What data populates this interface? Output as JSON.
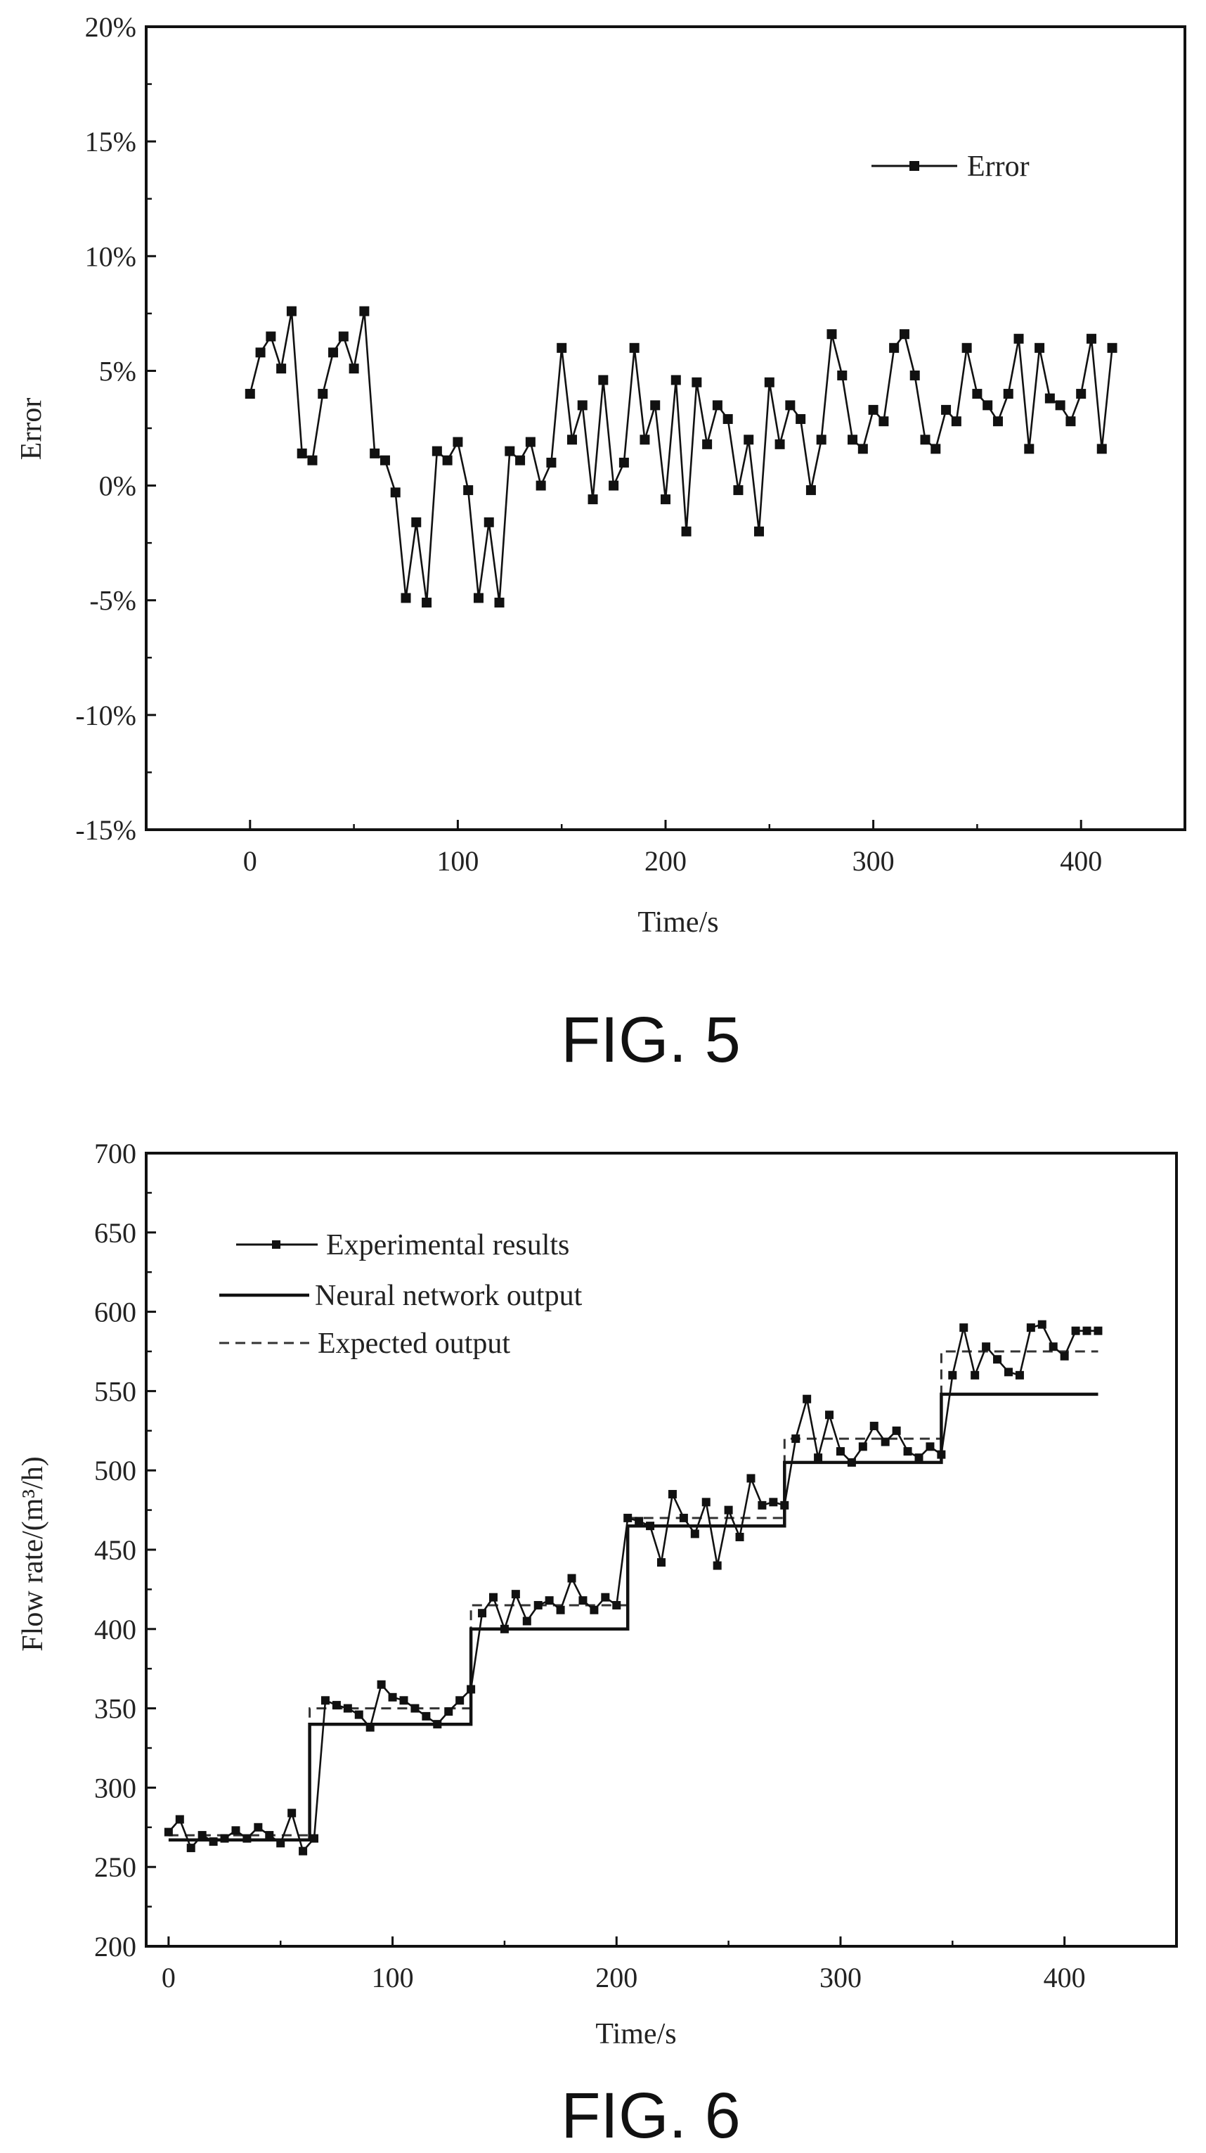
{
  "figures": [
    {
      "caption": "FIG. 5",
      "chart_data": {
        "type": "line",
        "xlabel": "Time/s",
        "ylabel": "Error",
        "xlim": [
          -50,
          450
        ],
        "ylim": [
          -15,
          20
        ],
        "x_ticks": [
          0,
          100,
          200,
          300,
          400
        ],
        "x_tick_labels": [
          "0",
          "100",
          "200",
          "300",
          "400"
        ],
        "y_ticks": [
          -15,
          -10,
          -5,
          0,
          5,
          10,
          15,
          20
        ],
        "y_tick_labels": [
          "-15%",
          "-10%",
          "-5%",
          "0%",
          "5%",
          "10%",
          "15%",
          "20%"
        ],
        "grid": false,
        "legend_position": "top-right",
        "series": [
          {
            "name": "Error",
            "marker": "square",
            "x": [
              0,
              5,
              10,
              15,
              20,
              25,
              30,
              35,
              40,
              45,
              50,
              55,
              60,
              65,
              70,
              75,
              80,
              85,
              90,
              95,
              100,
              105,
              110,
              115,
              120,
              125,
              130,
              135,
              140,
              145,
              150,
              155,
              160,
              165,
              170,
              175,
              180,
              185,
              190,
              195,
              200,
              205,
              210,
              215,
              220,
              225,
              230,
              235,
              240,
              245,
              250,
              255,
              260,
              265,
              270,
              275,
              280,
              285,
              290,
              295,
              300,
              305,
              310,
              315,
              320,
              325,
              330,
              335,
              340,
              345,
              350,
              355,
              360,
              365,
              370,
              375,
              380,
              385,
              390,
              395,
              400,
              405,
              410,
              415
            ],
            "values": [
              4.0,
              5.8,
              6.5,
              5.1,
              7.6,
              1.4,
              1.1,
              4.0,
              5.8,
              6.5,
              5.1,
              7.6,
              1.4,
              1.1,
              -0.3,
              -4.9,
              -1.6,
              -5.1,
              1.5,
              1.1,
              1.9,
              -0.2,
              -4.9,
              -1.6,
              -5.1,
              1.5,
              1.1,
              1.9,
              0.0,
              1.0,
              6.0,
              2.0,
              3.5,
              -0.6,
              4.6,
              0.0,
              1.0,
              6.0,
              2.0,
              3.5,
              -0.6,
              4.6,
              -2.0,
              4.5,
              1.8,
              3.5,
              2.9,
              -0.2,
              2.0,
              -2.0,
              4.5,
              1.8,
              3.5,
              2.9,
              -0.2,
              2.0,
              6.6,
              4.8,
              2.0,
              1.6,
              3.3,
              2.8,
              6.0,
              6.6,
              4.8,
              2.0,
              1.6,
              3.3,
              2.8,
              6.0,
              4.0,
              3.5,
              2.8,
              4.0,
              6.4,
              1.6,
              6.0,
              3.8,
              3.5,
              2.8,
              4.0,
              6.4,
              1.6,
              6.0
            ]
          }
        ]
      }
    },
    {
      "caption": "FIG. 6",
      "chart_data": {
        "type": "line",
        "xlabel": "Time/s",
        "ylabel": "Flow rate/(m³/h)",
        "xlim": [
          -10,
          450
        ],
        "ylim": [
          200,
          700
        ],
        "x_ticks": [
          0,
          100,
          200,
          300,
          400
        ],
        "x_tick_labels": [
          "0",
          "100",
          "200",
          "300",
          "400"
        ],
        "y_ticks": [
          200,
          250,
          300,
          350,
          400,
          450,
          500,
          550,
          600,
          650,
          700
        ],
        "y_tick_labels": [
          "200",
          "250",
          "300",
          "350",
          "400",
          "450",
          "500",
          "550",
          "600",
          "650",
          "700"
        ],
        "grid": false,
        "legend_position": "top-left",
        "series": [
          {
            "name": "Experimental results",
            "style": "line-with-markers",
            "x": [
              0,
              5,
              10,
              15,
              20,
              25,
              30,
              35,
              40,
              45,
              50,
              55,
              60,
              65,
              70,
              75,
              80,
              85,
              90,
              95,
              100,
              105,
              110,
              115,
              120,
              125,
              130,
              135,
              140,
              145,
              150,
              155,
              160,
              165,
              170,
              175,
              180,
              185,
              190,
              195,
              200,
              205,
              210,
              215,
              220,
              225,
              230,
              235,
              240,
              245,
              250,
              255,
              260,
              265,
              270,
              275,
              280,
              285,
              290,
              295,
              300,
              305,
              310,
              315,
              320,
              325,
              330,
              335,
              340,
              345,
              350,
              355,
              360,
              365,
              370,
              375,
              380,
              385,
              390,
              395,
              400,
              405,
              410,
              415
            ],
            "values": [
              272,
              280,
              262,
              270,
              266,
              268,
              273,
              268,
              275,
              270,
              265,
              284,
              260,
              268,
              355,
              352,
              350,
              346,
              338,
              365,
              357,
              355,
              350,
              345,
              340,
              348,
              355,
              362,
              410,
              420,
              400,
              422,
              405,
              415,
              418,
              412,
              432,
              418,
              412,
              420,
              415,
              470,
              468,
              465,
              442,
              485,
              470,
              460,
              480,
              440,
              475,
              458,
              495,
              478,
              480,
              478,
              520,
              545,
              508,
              535,
              512,
              505,
              515,
              528,
              518,
              525,
              512,
              508,
              515,
              510,
              560,
              590,
              560,
              578,
              570,
              562,
              560,
              590,
              592,
              578,
              572,
              588,
              588,
              588
            ]
          },
          {
            "name": "Neural network output",
            "style": "solid-step",
            "x": [
              0,
              63,
              63,
              135,
              135,
              205,
              205,
              275,
              275,
              345,
              345,
              415
            ],
            "values": [
              267,
              267,
              340,
              340,
              400,
              400,
              465,
              465,
              505,
              505,
              548,
              548
            ]
          },
          {
            "name": "Expected output",
            "style": "dashed-step",
            "x": [
              0,
              63,
              63,
              135,
              135,
              205,
              205,
              275,
              275,
              345,
              345,
              415
            ],
            "values": [
              270,
              270,
              350,
              350,
              415,
              415,
              470,
              470,
              520,
              520,
              575,
              575
            ]
          }
        ]
      }
    }
  ]
}
